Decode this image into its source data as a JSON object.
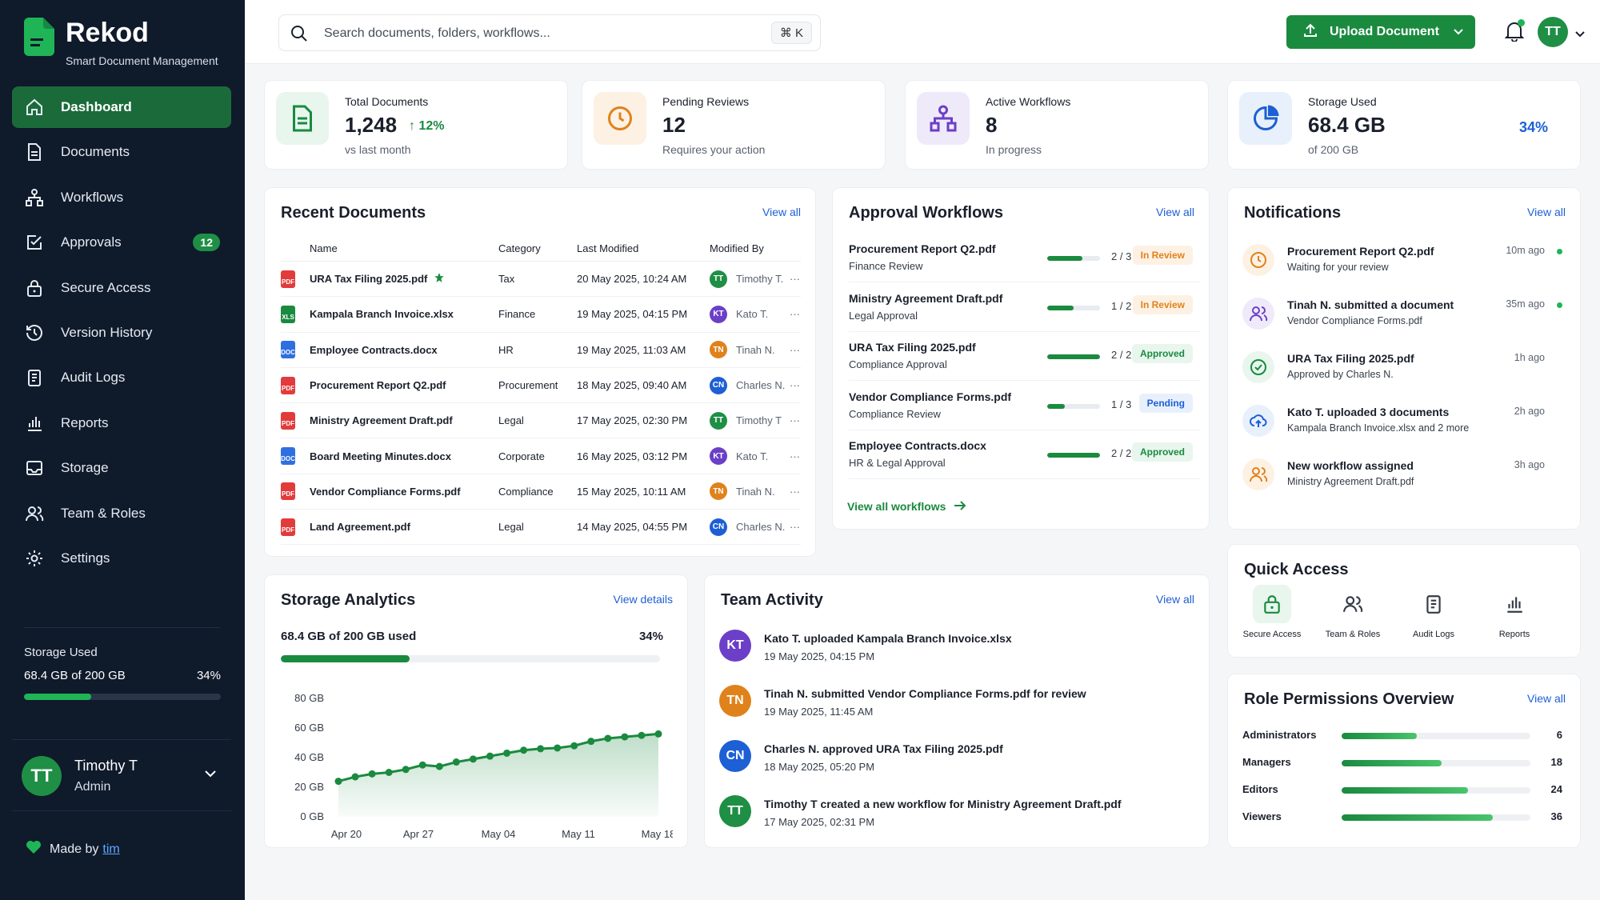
{
  "brand": {
    "name": "Rekod",
    "tagline": "Smart Document Management"
  },
  "nav": [
    {
      "label": "Dashboard",
      "icon": "home-icon",
      "active": true
    },
    {
      "label": "Documents",
      "icon": "document-icon"
    },
    {
      "label": "Workflows",
      "icon": "workflow-icon"
    },
    {
      "label": "Approvals",
      "icon": "approval-check-icon",
      "badge": "12"
    },
    {
      "label": "Secure Access",
      "icon": "lock-icon"
    },
    {
      "label": "Version History",
      "icon": "history-icon"
    },
    {
      "label": "Audit Logs",
      "icon": "audit-icon"
    },
    {
      "label": "Reports",
      "icon": "bar-chart-icon"
    },
    {
      "label": "Storage",
      "icon": "storage-icon"
    },
    {
      "label": "Team & Roles",
      "icon": "team-icon"
    },
    {
      "label": "Settings",
      "icon": "gear-icon"
    }
  ],
  "sidebar_storage": {
    "label": "Storage Used",
    "value": "68.4 GB of 200 GB",
    "percent": "34%",
    "fraction": 0.34
  },
  "user": {
    "initials": "TT",
    "name": "Timothy T",
    "role": "Admin"
  },
  "made_by": {
    "text": "Made by",
    "link": "tim"
  },
  "search": {
    "placeholder": "Search documents, folders, workflows...",
    "shortcut": "⌘ K"
  },
  "upload": {
    "label": "Upload Document"
  },
  "top_user": {
    "initials": "TT"
  },
  "stats": [
    {
      "label": "Total Documents",
      "value": "1,248",
      "delta": "12%",
      "sub": "vs last month",
      "icon": "document-icon",
      "color": "#1a8a3f",
      "bg": "#e8f6ee"
    },
    {
      "label": "Pending Reviews",
      "value": "12",
      "sub": "Requires your action",
      "icon": "clock-icon",
      "color": "#e0821b",
      "bg": "#fdf1e4"
    },
    {
      "label": "Active Workflows",
      "value": "8",
      "sub": "In progress",
      "icon": "workflow-icon",
      "color": "#6b3fc7",
      "bg": "#efeafa"
    },
    {
      "label": "Storage Used",
      "value": "68.4 GB",
      "sub": "of 200 GB",
      "percent": "34%",
      "icon": "pie-chart-icon",
      "color": "#1d5fd4",
      "bg": "#e8f0fc"
    }
  ],
  "recent": {
    "title": "Recent Documents",
    "link": "View all",
    "headers": [
      "Name",
      "Category",
      "Last Modified",
      "Modified By"
    ],
    "rows": [
      {
        "name": "URA Tax Filing 2025.pdf",
        "type": "pdf",
        "starred": true,
        "category": "Tax",
        "modified": "20 May 2025, 10:24 AM",
        "by": "Timothy T.",
        "initials": "TT",
        "color": "#1f8f45"
      },
      {
        "name": "Kampala Branch Invoice.xlsx",
        "type": "xlsx",
        "category": "Finance",
        "modified": "19 May 2025, 04:15 PM",
        "by": "Kato T.",
        "initials": "KT",
        "color": "#6b3fc7"
      },
      {
        "name": "Employee Contracts.docx",
        "type": "docx",
        "category": "HR",
        "modified": "19 May 2025, 11:03 AM",
        "by": "Tinah N.",
        "initials": "TN",
        "color": "#e0821b"
      },
      {
        "name": "Procurement Report Q2.pdf",
        "type": "pdf",
        "category": "Procurement",
        "modified": "18 May 2025, 09:40 AM",
        "by": "Charles N.",
        "initials": "CN",
        "color": "#1d5fd4"
      },
      {
        "name": "Ministry Agreement Draft.pdf",
        "type": "pdf",
        "category": "Legal",
        "modified": "17 May 2025, 02:30 PM",
        "by": "Timothy T",
        "initials": "TT",
        "color": "#1f8f45"
      },
      {
        "name": "Board Meeting Minutes.docx",
        "type": "docx",
        "category": "Corporate",
        "modified": "16 May 2025, 03:12 PM",
        "by": "Kato T.",
        "initials": "KT",
        "color": "#6b3fc7"
      },
      {
        "name": "Vendor Compliance Forms.pdf",
        "type": "pdf",
        "category": "Compliance",
        "modified": "15 May 2025, 10:11 AM",
        "by": "Tinah N.",
        "initials": "TN",
        "color": "#e0821b"
      },
      {
        "name": "Land Agreement.pdf",
        "type": "pdf",
        "category": "Legal",
        "modified": "14 May 2025, 04:55 PM",
        "by": "Charles N.",
        "initials": "CN",
        "color": "#1d5fd4"
      }
    ]
  },
  "approvals": {
    "title": "Approval Workflows",
    "link": "View all",
    "footer": "View all workflows",
    "items": [
      {
        "name": "Procurement Report Q2.pdf",
        "sub": "Finance Review",
        "count": "2 / 3",
        "progress": 0.67,
        "status": "In Review",
        "status_color": "#e0821b",
        "status_bg": "#fdf1e4"
      },
      {
        "name": "Ministry Agreement Draft.pdf",
        "sub": "Legal Approval",
        "count": "1 / 2",
        "progress": 0.5,
        "status": "In Review",
        "status_color": "#e0821b",
        "status_bg": "#fdf1e4"
      },
      {
        "name": "URA Tax Filing 2025.pdf",
        "sub": "Compliance Approval",
        "count": "2 / 2",
        "progress": 1.0,
        "status": "Approved",
        "status_color": "#1a8a3f",
        "status_bg": "#e8f6ee"
      },
      {
        "name": "Vendor Compliance Forms.pdf",
        "sub": "Compliance Review",
        "count": "1 / 3",
        "progress": 0.33,
        "status": "Pending",
        "status_color": "#1d5fd4",
        "status_bg": "#e8f0fc"
      },
      {
        "name": "Employee Contracts.docx",
        "sub": "HR & Legal Approval",
        "count": "2 / 2",
        "progress": 1.0,
        "status": "Approved",
        "status_color": "#1a8a3f",
        "status_bg": "#e8f6ee"
      }
    ]
  },
  "notifications": {
    "title": "Notifications",
    "link": "View all",
    "items": [
      {
        "title": "Procurement Report Q2.pdf",
        "sub": "Waiting for your review",
        "time": "10m ago",
        "unread": true,
        "icon": "clock-icon",
        "color": "#e0821b",
        "bg": "#fdf1e4"
      },
      {
        "title": "Tinah N. submitted a document",
        "sub": "Vendor Compliance Forms.pdf",
        "time": "35m ago",
        "unread": true,
        "icon": "users-icon",
        "color": "#6b3fc7",
        "bg": "#efeafa"
      },
      {
        "title": "URA Tax Filing 2025.pdf",
        "sub": "Approved by Charles N.",
        "time": "1h ago",
        "unread": false,
        "icon": "check-circle-icon",
        "color": "#1a8a3f",
        "bg": "#e8f6ee"
      },
      {
        "title": "Kato T. uploaded 3 documents",
        "sub": "Kampala Branch Invoice.xlsx and 2 more",
        "time": "2h ago",
        "unread": false,
        "icon": "cloud-upload-icon",
        "color": "#1d5fd4",
        "bg": "#e8f0fc"
      },
      {
        "title": "New workflow assigned",
        "sub": "Ministry Agreement Draft.pdf",
        "time": "3h ago",
        "unread": false,
        "icon": "users-icon",
        "color": "#e0821b",
        "bg": "#fdf1e4"
      }
    ]
  },
  "storage_analytics": {
    "title": "Storage Analytics",
    "link": "View details",
    "used": "68.4 GB of 200 GB used",
    "percent": "34%",
    "fraction": 0.34
  },
  "chart_data": {
    "type": "area",
    "x": [
      "Apr 20",
      "Apr 21",
      "Apr 22",
      "Apr 23",
      "Apr 24",
      "Apr 25",
      "Apr 26",
      "Apr 27",
      "Apr 28",
      "Apr 30",
      "May 02",
      "May 04",
      "May 06",
      "May 08",
      "May 10",
      "May 12",
      "May 14",
      "May 16",
      "May 18",
      "May 19"
    ],
    "y": [
      24,
      27,
      29,
      30,
      32,
      35,
      34,
      37,
      39,
      41,
      43,
      45,
      46,
      46.5,
      48,
      51,
      53,
      54,
      55,
      56
    ],
    "xticks": [
      "Apr 20",
      "Apr 27",
      "May 04",
      "May 11",
      "May 18"
    ],
    "yticks": [
      "0 GB",
      "20 GB",
      "40 GB",
      "60 GB",
      "80 GB"
    ],
    "ylim": [
      0,
      80
    ],
    "xlabel": "",
    "ylabel": "",
    "color": "#1a8a3f",
    "grid": false
  },
  "activity": {
    "title": "Team Activity",
    "link": "View all",
    "items": [
      {
        "initials": "KT",
        "color": "#6b3fc7",
        "text": "Kato T. uploaded Kampala Branch Invoice.xlsx",
        "time": "19 May 2025, 04:15 PM"
      },
      {
        "initials": "TN",
        "color": "#e0821b",
        "text": "Tinah N. submitted Vendor Compliance Forms.pdf for review",
        "time": "19 May 2025, 11:45 AM"
      },
      {
        "initials": "CN",
        "color": "#1d5fd4",
        "text": "Charles N. approved URA Tax Filing 2025.pdf",
        "time": "18 May 2025, 05:20 PM"
      },
      {
        "initials": "TT",
        "color": "#1f8f45",
        "text": "Timothy T created a new workflow for Ministry Agreement Draft.pdf",
        "time": "17 May 2025, 02:31 PM"
      }
    ]
  },
  "quick_access": {
    "title": "Quick Access",
    "items": [
      {
        "label": "Secure Access",
        "icon": "lock-icon",
        "bg": "#e8f6ee",
        "color": "#1a8a3f"
      },
      {
        "label": "Team & Roles",
        "icon": "team-icon",
        "bg": "#ffffff",
        "color": "#333b47"
      },
      {
        "label": "Audit Logs",
        "icon": "audit-icon",
        "bg": "#ffffff",
        "color": "#333b47"
      },
      {
        "label": "Reports",
        "icon": "bar-chart-icon",
        "bg": "#ffffff",
        "color": "#333b47"
      }
    ]
  },
  "roles": {
    "title": "Role Permissions Overview",
    "link": "View all",
    "items": [
      {
        "label": "Administrators",
        "value": "6",
        "fraction": 0.4
      },
      {
        "label": "Managers",
        "value": "18",
        "fraction": 0.53
      },
      {
        "label": "Editors",
        "value": "24",
        "fraction": 0.67
      },
      {
        "label": "Viewers",
        "value": "36",
        "fraction": 0.8
      }
    ]
  }
}
